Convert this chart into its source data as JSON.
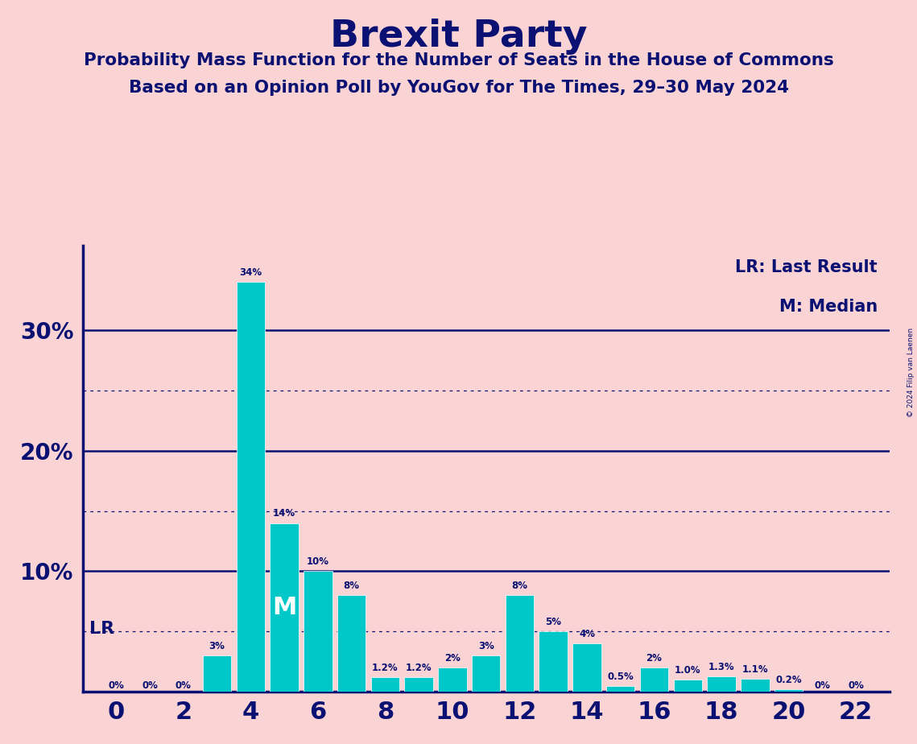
{
  "title": "Brexit Party",
  "subtitle1": "Probability Mass Function for the Number of Seats in the House of Commons",
  "subtitle2": "Based on an Opinion Poll by YouGov for The Times, 29–30 May 2024",
  "background_color": "#FAD4D4",
  "bar_color": "#00C8C8",
  "title_color": "#0A1172",
  "seats": [
    0,
    1,
    2,
    3,
    4,
    5,
    6,
    7,
    8,
    9,
    10,
    11,
    12,
    13,
    14,
    15,
    16,
    17,
    18,
    19,
    20,
    21,
    22
  ],
  "probabilities": [
    0.0,
    0.0,
    0.0,
    3.0,
    34.0,
    14.0,
    10.0,
    8.0,
    1.2,
    1.2,
    2.0,
    3.0,
    8.0,
    5.0,
    4.0,
    0.5,
    2.0,
    1.0,
    1.3,
    1.1,
    0.2,
    0.0,
    0.0
  ],
  "bar_labels": [
    "0%",
    "0%",
    "0%",
    "3%",
    "34%",
    "14%",
    "10%",
    "8%",
    "1.2%",
    "1.2%",
    "2%",
    "3%",
    "8%",
    "5%",
    "4%",
    "0.5%",
    "2%",
    "1.0%",
    "1.3%",
    "1.1%",
    "0.2%",
    "0%",
    "0%"
  ],
  "LR_seat": 0,
  "median_seat": 5,
  "legend_lr": "LR: Last Result",
  "legend_m": "M: Median",
  "copyright": "© 2024 Filip van Laenen",
  "ylim": [
    0,
    37
  ],
  "dotted_lines": [
    5.0,
    15.0,
    25.0
  ],
  "solid_lines": [
    10.0,
    20.0,
    30.0
  ],
  "xtick_positions": [
    0,
    2,
    4,
    6,
    8,
    10,
    12,
    14,
    16,
    18,
    20,
    22
  ],
  "bar_width": 0.85
}
